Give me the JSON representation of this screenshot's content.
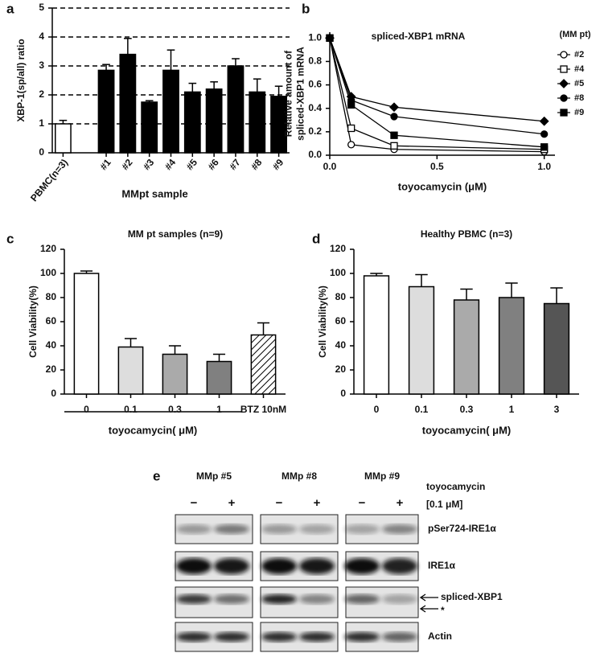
{
  "chart_data": [
    {
      "type": "bar",
      "panel": "a",
      "ylabel": "XBP-1(sp/all) ratio",
      "xlabel": "MMpt sample",
      "categories": [
        "PBMC(n=3)",
        null,
        "#1",
        "#2",
        "#3",
        "#4",
        "#5",
        "#6",
        "#7",
        "#8",
        "#9"
      ],
      "values": [
        1.0,
        null,
        2.85,
        3.4,
        1.75,
        2.85,
        2.1,
        2.2,
        3.0,
        2.1,
        1.95
      ],
      "errors": [
        0.12,
        null,
        0.2,
        0.55,
        0.05,
        0.7,
        0.3,
        0.25,
        0.25,
        0.45,
        0.35
      ],
      "colors": [
        "#ffffff",
        null,
        "#000000",
        "#000000",
        "#000000",
        "#000000",
        "#000000",
        "#000000",
        "#000000",
        "#000000",
        "#000000"
      ],
      "ylim": [
        0,
        5
      ],
      "yticks": [
        0,
        1,
        2,
        3,
        4,
        5
      ],
      "grid": "dashed",
      "rotate_labels": true
    },
    {
      "type": "line",
      "panel": "b",
      "title": "spliced-XBP1 mRNA",
      "ylabel": [
        "Relative amount of",
        "spliced-XBP1 mRNA"
      ],
      "xlabel": "toyocamycin (μM)",
      "legend_title": "(MM pt)",
      "legend": "right",
      "x": [
        0,
        0.1,
        0.3,
        1.0
      ],
      "series": [
        {
          "name": "#2",
          "marker": "circle-open",
          "color": "#000000",
          "values": [
            1.0,
            0.09,
            0.05,
            0.03
          ]
        },
        {
          "name": "#4",
          "marker": "square-open",
          "color": "#000000",
          "values": [
            1.0,
            0.23,
            0.08,
            0.05
          ]
        },
        {
          "name": "#5",
          "marker": "diamond",
          "color": "#000000",
          "values": [
            1.0,
            0.5,
            0.41,
            0.29
          ]
        },
        {
          "name": "#8",
          "marker": "circle",
          "color": "#000000",
          "values": [
            1.0,
            0.47,
            0.33,
            0.18
          ]
        },
        {
          "name": "#9",
          "marker": "square",
          "color": "#000000",
          "values": [
            1.0,
            0.43,
            0.17,
            0.07
          ]
        }
      ],
      "xlim": [
        0,
        1.05
      ],
      "xticks": [
        {
          "value": 0,
          "label": "0.0"
        },
        0.5,
        {
          "value": 1,
          "label": "1.0"
        }
      ],
      "ylim": [
        0,
        1.05
      ],
      "yticks": [
        {
          "value": 0,
          "label": "0.0"
        },
        0.2,
        0.4,
        0.6,
        0.8,
        {
          "value": 1,
          "label": "1.0"
        }
      ]
    },
    {
      "type": "bar",
      "panel": "c",
      "title": "MM pt samples (n=9)",
      "ylabel": "Cell Viability(%)",
      "xlabel": "toyocamycin( μM)",
      "categories": [
        "0",
        "0.1",
        "0.3",
        "1",
        "BTZ 10nM"
      ],
      "values": [
        100,
        39,
        33,
        27,
        49
      ],
      "errors": [
        2,
        7,
        7,
        6,
        10
      ],
      "colors": [
        "#ffffff",
        "#dddddd",
        "#aaaaaa",
        "#808080",
        "#ffffff"
      ],
      "hatched": [
        false,
        false,
        false,
        false,
        true
      ],
      "ylim": [
        0,
        120
      ],
      "yticks": [
        0,
        20,
        40,
        60,
        80,
        100,
        120
      ]
    },
    {
      "type": "bar",
      "panel": "d",
      "title": "Healthy PBMC (n=3)",
      "ylabel": "Cell Viability(%)",
      "xlabel": "toyocamycin( μM)",
      "categories": [
        "0",
        "0.1",
        "0.3",
        "1",
        "3"
      ],
      "values": [
        98,
        89,
        78,
        80,
        75
      ],
      "errors": [
        2,
        10,
        9,
        12,
        13
      ],
      "colors": [
        "#ffffff",
        "#dddddd",
        "#aaaaaa",
        "#808080",
        "#555555"
      ],
      "ylim": [
        0,
        120
      ],
      "yticks": [
        0,
        20,
        40,
        60,
        80,
        100,
        120
      ]
    }
  ],
  "blot": {
    "panel": "e",
    "treatment_label": "toyocamycin",
    "dose_label": "[0.1 μM]",
    "samples": [
      "MMp #5",
      "MMp #8",
      "MMp #9"
    ],
    "signs": [
      "−",
      "+"
    ],
    "rows": [
      "pSer724-IRE1α",
      "IRE1α",
      "spliced-XBP1",
      "Actin"
    ],
    "marker": "*"
  }
}
